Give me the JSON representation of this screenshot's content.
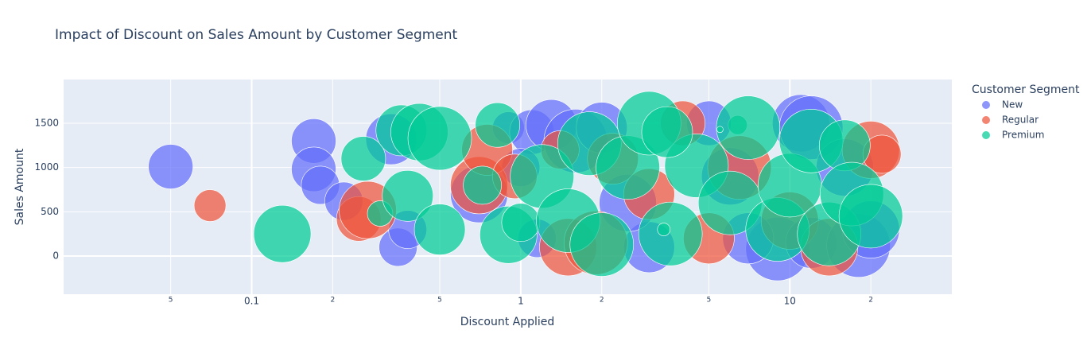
{
  "chart_data": {
    "type": "scatter",
    "title": "Impact of Discount on Sales Amount by Customer Segment",
    "x_label": "Discount Applied",
    "y_label": "Sales Amount",
    "legend_title": "Customer Segment",
    "legend": "right-top",
    "xscale": "log",
    "grid": true,
    "xlim": [
      0.02,
      40
    ],
    "ylim": [
      -431,
      1994
    ],
    "xticks": [
      {
        "value": 0.05,
        "label": "5"
      },
      0.1,
      {
        "value": 0.2,
        "label": "2"
      },
      {
        "value": 0.5,
        "label": "5"
      },
      1,
      {
        "value": 2,
        "label": "2"
      },
      {
        "value": 5,
        "label": "5"
      },
      10,
      {
        "value": 20,
        "label": "2"
      }
    ],
    "yticks": [
      0,
      500,
      1000,
      1500
    ],
    "series": [
      {
        "name": "New",
        "color": "#636efa",
        "x": [
          0.05,
          0.17,
          0.17,
          0.18,
          0.22,
          0.35,
          0.38,
          0.33,
          0.7,
          0.9,
          1.1,
          1.3,
          1.15,
          1.6,
          2.0,
          3.0,
          5,
          6,
          9,
          11,
          12,
          12,
          16,
          18,
          20,
          1.0,
          2.5,
          7
        ],
        "values": [
          1010,
          1300,
          980,
          800,
          620,
          100,
          300,
          1320,
          700,
          1450,
          1400,
          1480,
          200,
          1300,
          1450,
          100,
          1500,
          900,
          80,
          1500,
          1450,
          150,
          1000,
          120,
          300,
          1000,
          600,
          200
        ],
        "sizes": [
          7,
          7,
          7,
          6,
          6,
          6,
          6,
          8,
          9,
          5,
          7,
          8,
          6,
          10,
          8,
          8,
          7,
          9,
          10,
          9,
          10,
          8,
          9,
          10,
          9,
          6,
          9,
          8
        ]
      },
      {
        "name": "Regular",
        "color": "#ef553b",
        "x": [
          0.07,
          0.25,
          0.27,
          0.7,
          0.75,
          0.95,
          1.5,
          1.9,
          2.2,
          4,
          5,
          6.5,
          10,
          14,
          20,
          22,
          3,
          1.4
        ],
        "values": [
          570,
          420,
          520,
          800,
          1200,
          900,
          100,
          150,
          1100,
          1500,
          200,
          1000,
          400,
          100,
          1200,
          1150,
          700,
          1200
        ],
        "sizes": [
          5,
          7,
          9,
          9,
          8,
          7,
          9,
          10,
          8,
          7,
          8,
          10,
          9,
          9,
          9,
          6,
          8,
          6
        ]
      },
      {
        "name": "Premium",
        "color": "#00cc96",
        "x": [
          0.13,
          0.26,
          0.3,
          0.36,
          0.38,
          0.42,
          0.5,
          0.5,
          0.72,
          0.82,
          0.9,
          1.0,
          1.2,
          1.5,
          1.8,
          2,
          2.5,
          3,
          3.6,
          4.5,
          6,
          6.4,
          7,
          9,
          10,
          12,
          14,
          16,
          17,
          20,
          3.4,
          3.5,
          5.5
        ],
        "values": [
          250,
          1100,
          480,
          1420,
          680,
          1400,
          1330,
          300,
          800,
          1480,
          240,
          380,
          900,
          400,
          1270,
          130,
          1000,
          1500,
          250,
          1020,
          600,
          1480,
          1450,
          300,
          800,
          1300,
          250,
          1250,
          700,
          450,
          300,
          1400,
          1430
        ],
        "sizes": [
          9,
          7,
          4,
          8,
          8,
          9,
          10,
          8,
          6,
          7,
          9,
          6,
          10,
          10,
          10,
          10,
          10,
          10,
          10,
          10,
          10,
          3,
          10,
          10,
          10,
          10,
          10,
          8,
          10,
          10,
          2,
          8,
          1
        ]
      }
    ]
  }
}
